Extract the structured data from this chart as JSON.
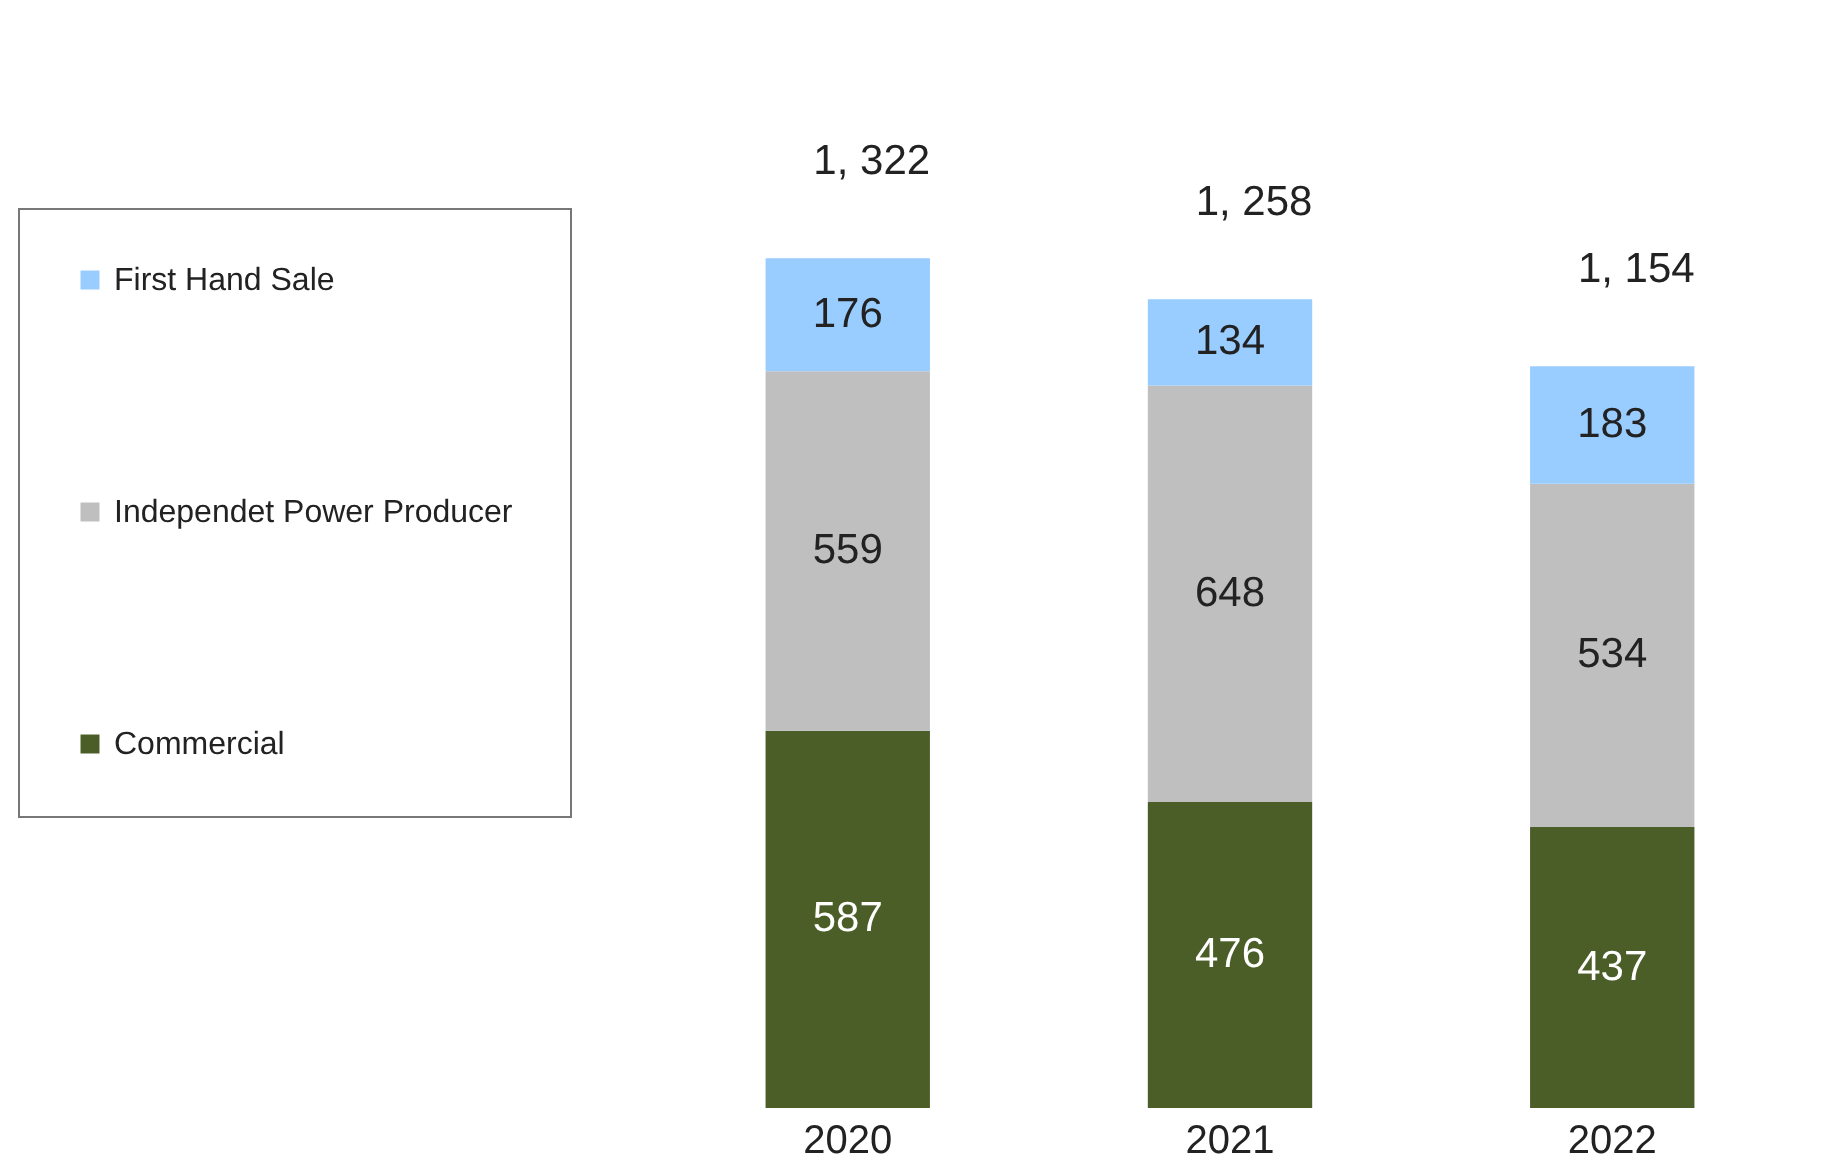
{
  "chart_data": {
    "type": "bar",
    "stacked": true,
    "categories": [
      "2020",
      "2021",
      "2022"
    ],
    "series": [
      {
        "name": "Commercial",
        "color": "#4b5e27",
        "values": [
          587,
          476,
          437
        ]
      },
      {
        "name": "Independet Power Producer",
        "color": "#bfbfbf",
        "values": [
          559,
          648,
          534
        ]
      },
      {
        "name": "First Hand Sale",
        "color": "#99ccff",
        "values": [
          176,
          134,
          183
        ]
      }
    ],
    "data_labels": true,
    "totals": [
      "1, 322",
      "1, 258",
      "1, 154"
    ],
    "legend": "left",
    "tick_labels": "x",
    "grid": false
  }
}
